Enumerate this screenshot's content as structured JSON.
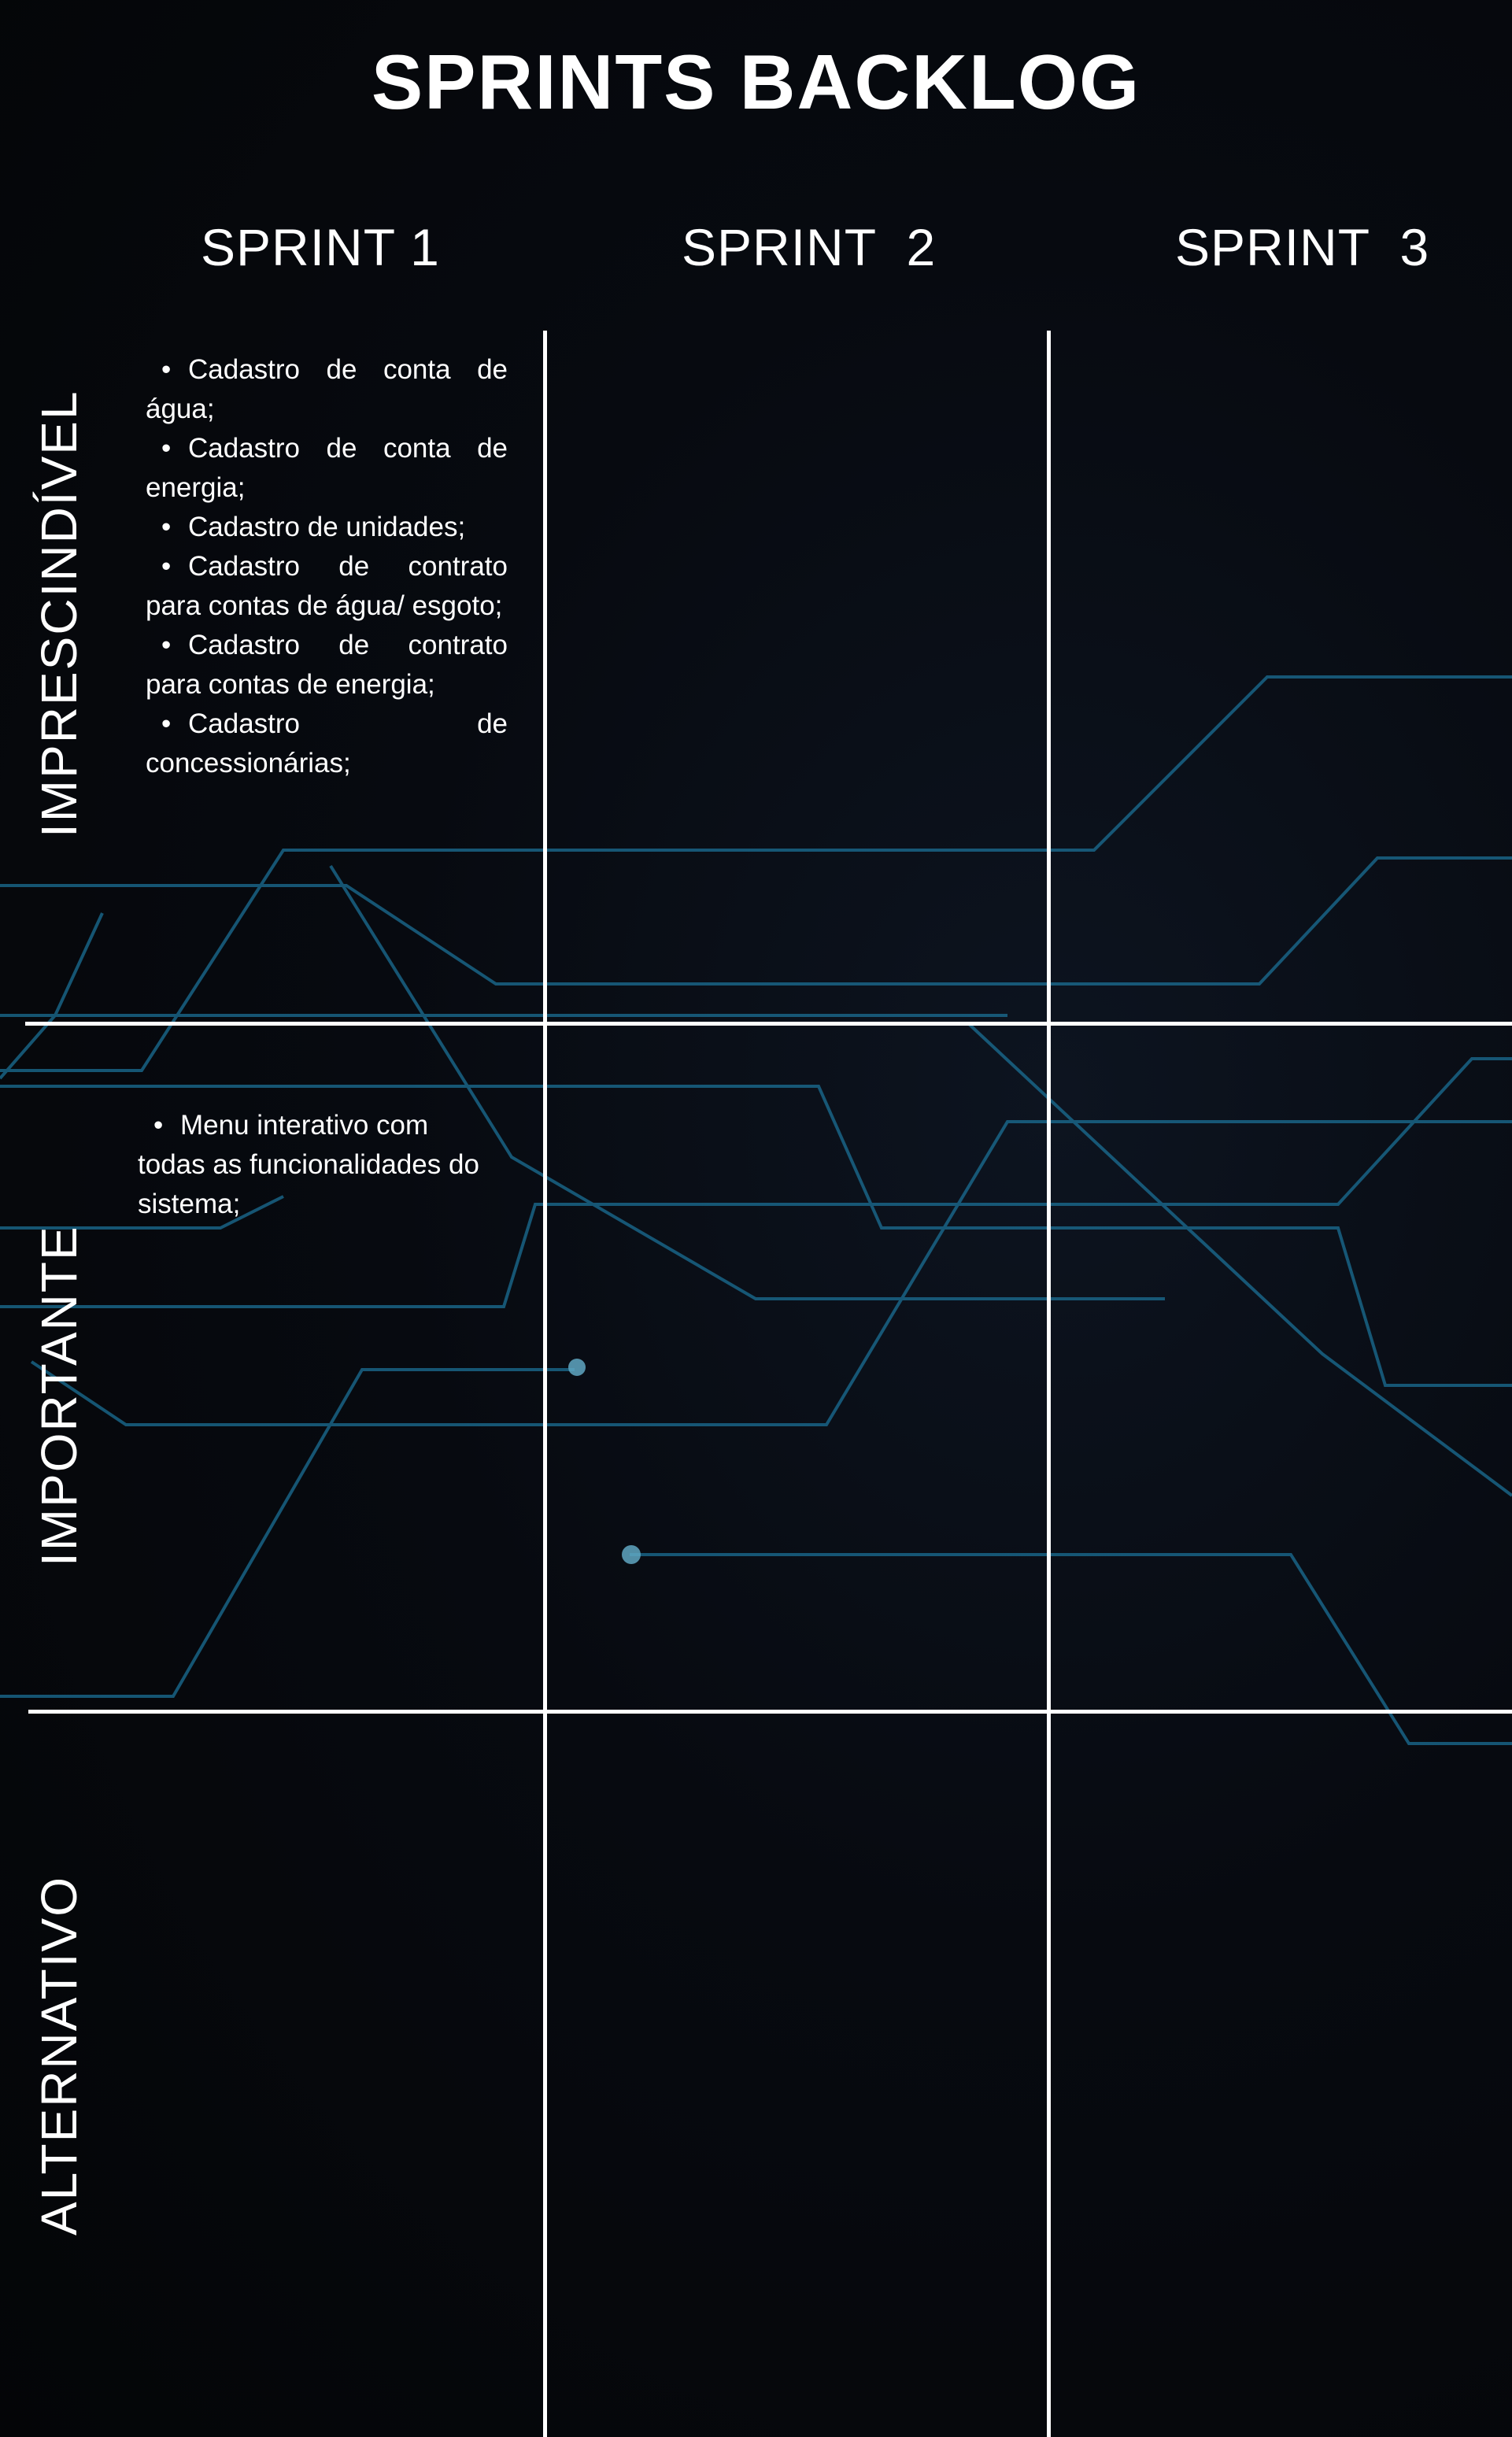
{
  "title": "SPRINTS BACKLOG",
  "columns": [
    "SPRINT 1",
    "SPRINT  2",
    "SPRINT  3"
  ],
  "rows": [
    "IMPRESCINDÍVEL",
    "IMPORTANTE",
    "ALTERNATIVO"
  ],
  "cells": {
    "imprescindivel_sprint1": [
      "Cadastro de conta de água;",
      "Cadastro de conta de energia;",
      "Cadastro de unidades;",
      "Cadastro de contrato para contas de água/ esgoto;",
      "Cadastro de contrato para contas de energia;",
      "Cadastro de concessionárias;"
    ],
    "importante_sprint1": [
      "Menu interativo com todas as funcionalidades do sistema;"
    ]
  },
  "colors": {
    "background": "#05070b",
    "grid_lines": "#ffffff",
    "circuit": "#1b6f95",
    "text": "#ffffff"
  }
}
